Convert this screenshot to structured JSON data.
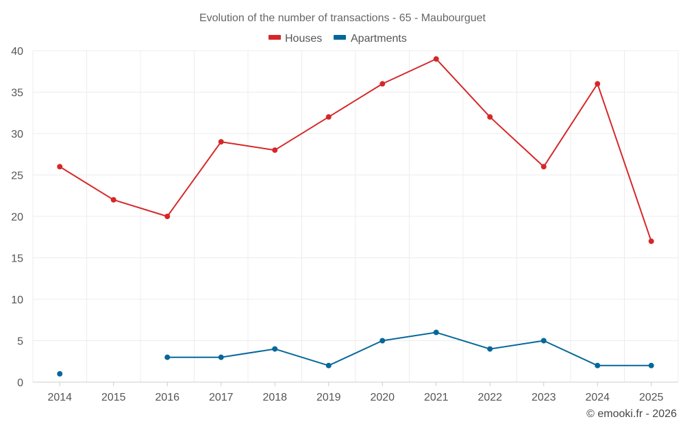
{
  "chart_data": {
    "type": "line",
    "title": "Evolution of the number of transactions - 65 - Maubourguet",
    "categories": [
      "2014",
      "2015",
      "2016",
      "2017",
      "2018",
      "2019",
      "2020",
      "2021",
      "2022",
      "2023",
      "2024",
      "2025"
    ],
    "ylim": [
      0,
      40
    ],
    "yticks": [
      0,
      5,
      10,
      15,
      20,
      25,
      30,
      35,
      40
    ],
    "grid": true,
    "legend_position": "top-center",
    "series": [
      {
        "name": "Houses",
        "color": "#d62728",
        "values": [
          26,
          22,
          20,
          29,
          28,
          32,
          36,
          39,
          32,
          26,
          36,
          17
        ]
      },
      {
        "name": "Apartments",
        "color": "#05679b",
        "values": [
          1,
          null,
          3,
          3,
          4,
          2,
          5,
          6,
          4,
          5,
          2,
          2
        ]
      }
    ],
    "yticklabels": [
      "0",
      "5",
      "10",
      "15",
      "20",
      "25",
      "30",
      "35",
      "40"
    ]
  },
  "credit": "© emooki.fr - 2026"
}
